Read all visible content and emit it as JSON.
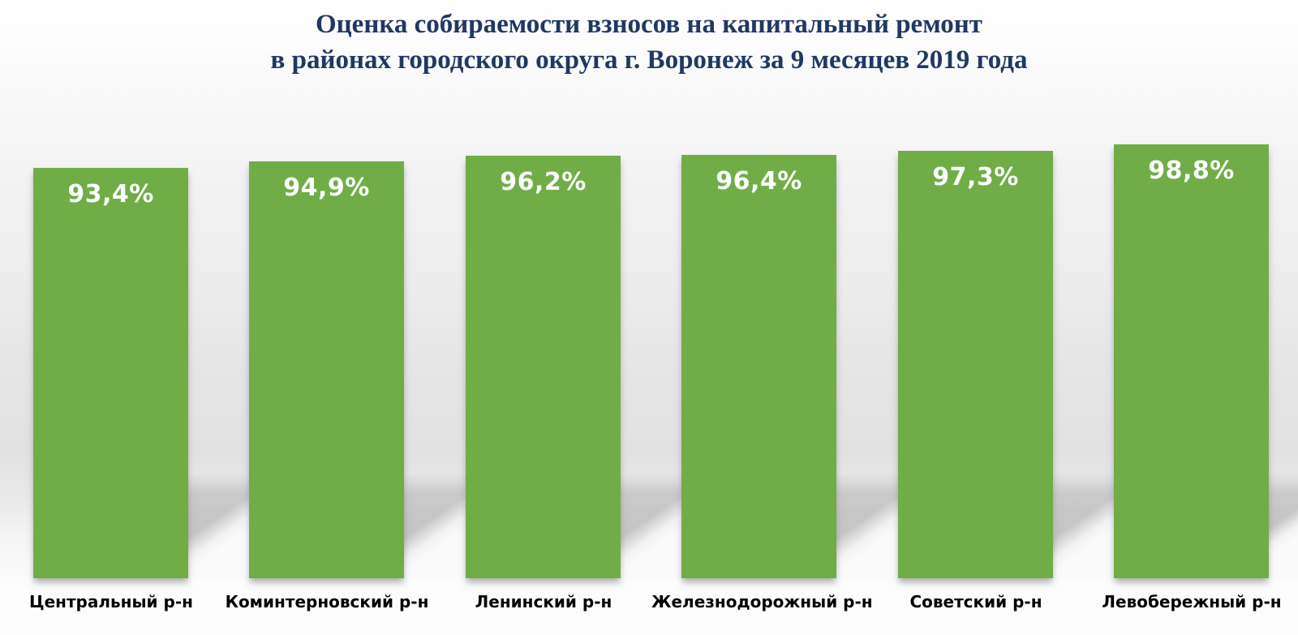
{
  "title": {
    "line1": "Оценка собираемости взносов на капитальный ремонт",
    "line2": "в районах городского округа г. Воронеж за 9 месяцев 2019 года"
  },
  "chart_data": {
    "type": "bar",
    "title": "Оценка собираемости взносов на капитальный ремонт в районах городского округа г. Воронеж за 9 месяцев 2019 года",
    "categories": [
      "Центральный р-н",
      "Коминтерновский р-н",
      "Ленинский р-н",
      "Железнодорожный р-н",
      "Советский р-н",
      "Левобережный р-н"
    ],
    "values": [
      93.4,
      94.9,
      96.2,
      96.4,
      97.3,
      98.8
    ],
    "value_labels": [
      "93,4%",
      "94,9%",
      "96,2%",
      "96,4%",
      "97,3%",
      "98,8%"
    ],
    "xlabel": "",
    "ylabel": "",
    "ylim": [
      0,
      100
    ],
    "grid": false,
    "legend": false,
    "orientation": "vertical",
    "value_labels_position": "inside-top"
  },
  "style": {
    "bar_color": "#70AD47",
    "value_label_color": "#FFFFFF",
    "category_label_color": "#000000",
    "title_color": "#1F3864",
    "wall_shadow_color": "#C6C6C6"
  }
}
